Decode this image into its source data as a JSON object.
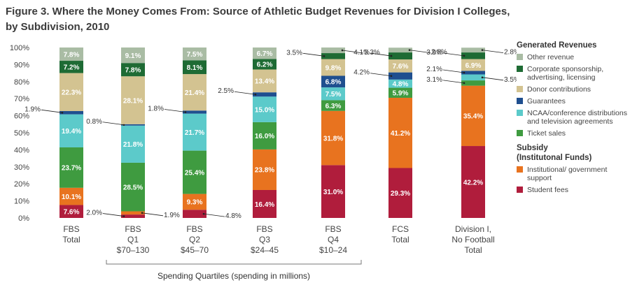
{
  "figure": {
    "title_line1": "Figure 3. Where the Money Comes From: Source of Athletic Budget Revenues for Division I Colleges,",
    "title_line2": "by Subdivision, 2010"
  },
  "legend": {
    "generated_heading": "Generated Revenues",
    "subsidy_heading_line1": "Subsidy",
    "subsidy_heading_line2": "(Institutonal Funds)",
    "generated_items": [
      {
        "label": "Other revenue",
        "color": "#a9bca4"
      },
      {
        "label": "Corporate sponsorship, advertising, licensing",
        "color": "#1e6b34"
      },
      {
        "label": "Donor contributions",
        "color": "#d3c391"
      },
      {
        "label": "Guarantees",
        "color": "#1f4f8f"
      },
      {
        "label": "NCAA/conference distributions and television agreements",
        "color": "#5ccaca"
      },
      {
        "label": "Ticket sales",
        "color": "#3f9b40"
      }
    ],
    "subsidy_items": [
      {
        "label": "Institutional/ government support",
        "color": "#e8731f"
      },
      {
        "label": "Student fees",
        "color": "#b01d3c"
      }
    ]
  },
  "chart_data": {
    "type": "bar",
    "stacked": true,
    "ylim": [
      0,
      100
    ],
    "y_ticks": [
      "0%",
      "10%",
      "20%",
      "30%",
      "40%",
      "50%",
      "60%",
      "70%",
      "80%",
      "90%",
      "100%"
    ],
    "grid": false,
    "legend_position": "right",
    "categories": [
      [
        "FBS",
        "Total"
      ],
      [
        "FBS",
        "Q1",
        "$70–130"
      ],
      [
        "FBS",
        "Q2",
        "$45–70"
      ],
      [
        "FBS",
        "Q3",
        "$24–45"
      ],
      [
        "FBS",
        "Q4",
        "$10–24"
      ],
      [
        "FCS",
        "Total"
      ],
      [
        "Division I,",
        "No Football",
        "Total"
      ]
    ],
    "group_label": "Spending Quartiles (spending in millions)",
    "series": [
      {
        "name": "Student fees",
        "color": "#b01d3c",
        "values": [
          7.6,
          2.0,
          4.8,
          16.4,
          31.0,
          29.3,
          42.2
        ],
        "labels": [
          "7.6%",
          "2.0%",
          "4.8%",
          "16.4%",
          "31.0%",
          "29.3%",
          "42.2%"
        ]
      },
      {
        "name": "Institutional/ government support",
        "color": "#e8731f",
        "values": [
          10.1,
          1.9,
          9.3,
          23.8,
          31.8,
          41.2,
          35.4
        ],
        "labels": [
          "10.1%",
          "1.9%",
          "9.3%",
          "23.8%",
          "31.8%",
          "41.2%",
          "35.4%"
        ]
      },
      {
        "name": "Ticket sales",
        "color": "#3f9b40",
        "values": [
          23.7,
          28.5,
          25.4,
          16.0,
          6.3,
          5.9,
          3.1
        ],
        "labels": [
          "23.7%",
          "28.5%",
          "25.4%",
          "16.0%",
          "6.3%",
          "5.9%",
          "3.1%"
        ]
      },
      {
        "name": "NCAA/conference distributions and television agreements",
        "color": "#5ccaca",
        "values": [
          19.4,
          21.8,
          21.7,
          15.0,
          7.5,
          4.8,
          3.5
        ],
        "labels": [
          "19.4%",
          "21.8%",
          "21.7%",
          "15.0%",
          "7.5%",
          "4.8%",
          "3.5%"
        ]
      },
      {
        "name": "Guarantees",
        "color": "#1f4f8f",
        "values": [
          1.9,
          0.8,
          1.8,
          2.5,
          6.8,
          4.2,
          2.1
        ],
        "labels": [
          "1.9%",
          "0.8%",
          "1.8%",
          "2.5%",
          "6.8%",
          "4.2%",
          "2.1%"
        ]
      },
      {
        "name": "Donor contributions",
        "color": "#d3c391",
        "values": [
          22.3,
          28.1,
          21.4,
          13.4,
          9.8,
          7.6,
          6.9
        ],
        "labels": [
          "22.3%",
          "28.1%",
          "21.4%",
          "13.4%",
          "9.8%",
          "7.6%",
          "6.9%"
        ]
      },
      {
        "name": "Corporate sponsorship, advertising, licensing",
        "color": "#1e6b34",
        "values": [
          7.2,
          7.8,
          8.1,
          6.2,
          3.5,
          4.1,
          3.9
        ],
        "labels": [
          "7.2%",
          "7.8%",
          "8.1%",
          "6.2%",
          "3.5%",
          "4.1%",
          "3.9%"
        ]
      },
      {
        "name": "Other revenue",
        "color": "#a9bca4",
        "values": [
          7.8,
          9.1,
          7.5,
          6.7,
          3.3,
          2.8,
          2.8
        ],
        "labels": [
          "7.8%",
          "9.1%",
          "7.5%",
          "6.7%",
          "3.3%",
          "2.8%",
          "2.8%"
        ]
      }
    ]
  }
}
